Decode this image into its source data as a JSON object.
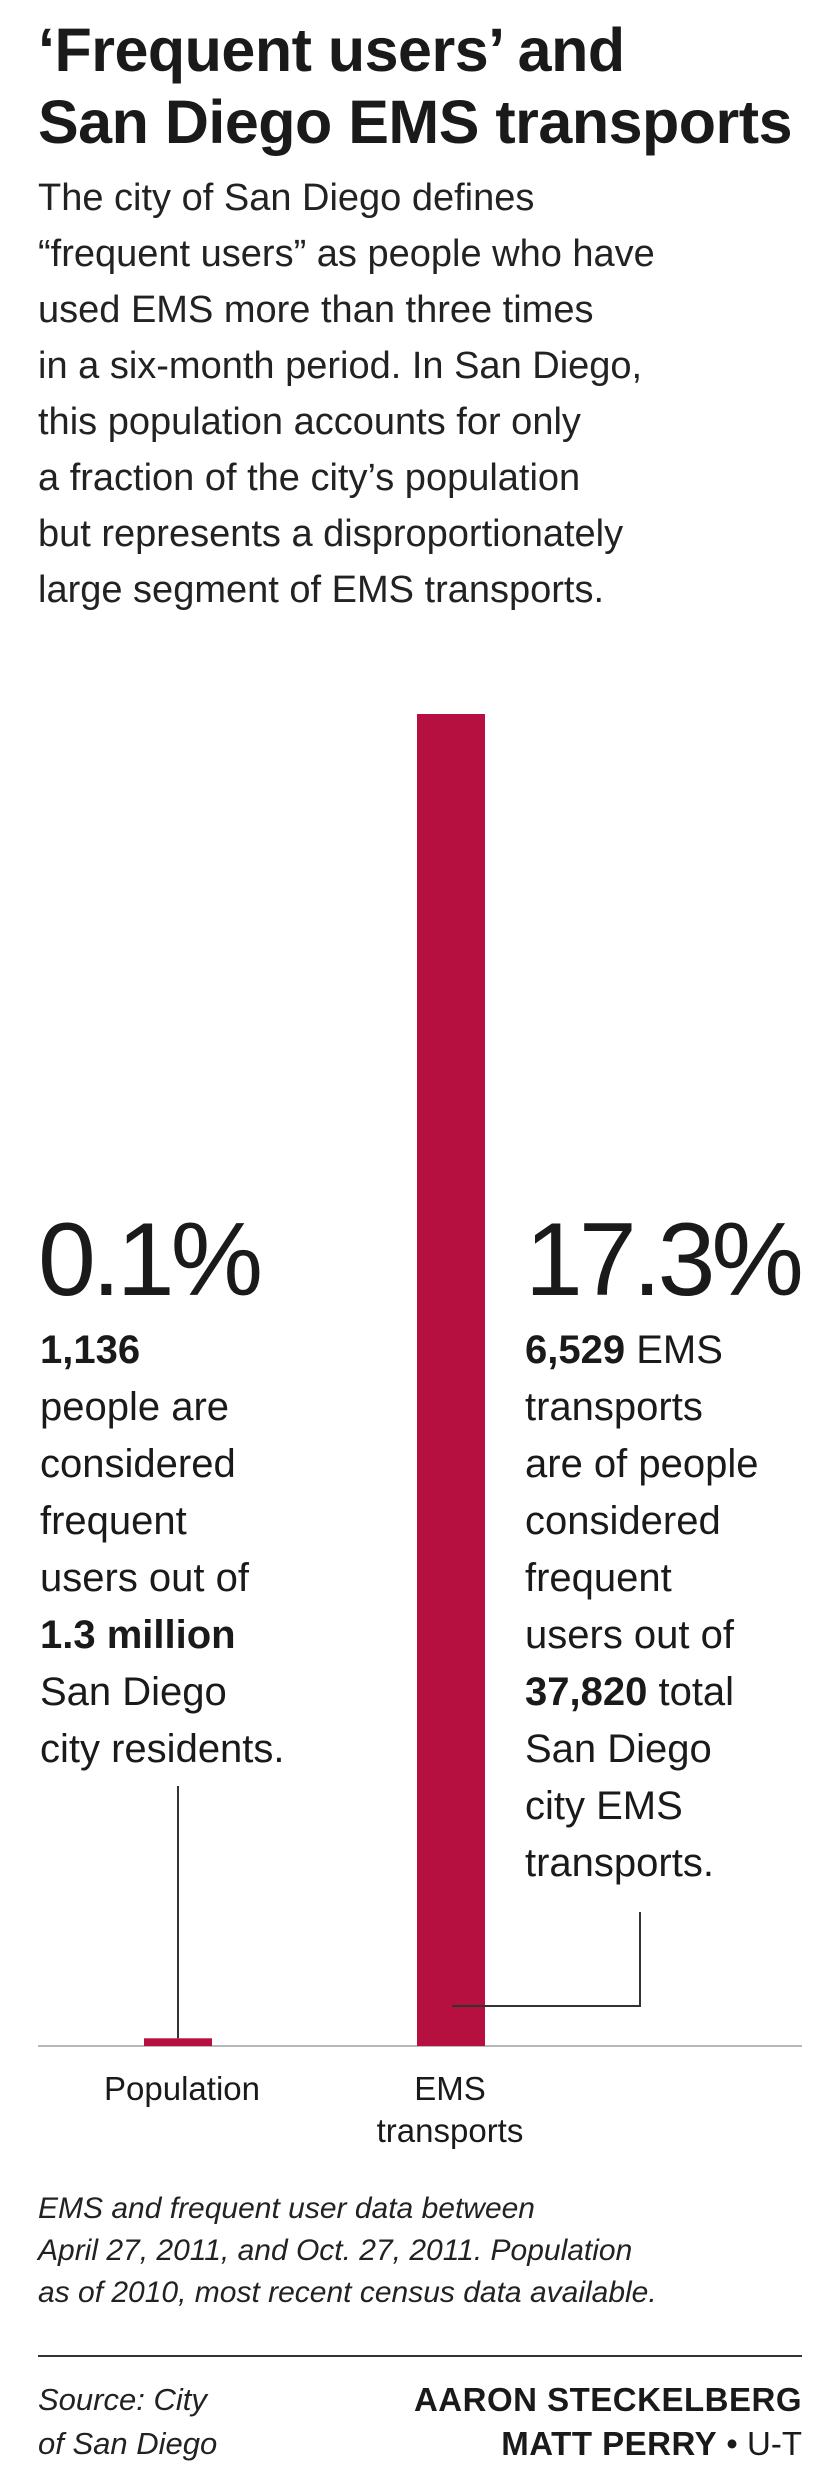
{
  "header": {
    "title_line1": "‘Frequent users’ and",
    "title_line2": "San Diego EMS transports",
    "intro_lines": [
      "The city of San Diego defines",
      "“frequent users” as people who have",
      "used EMS more than three times",
      "in a six-month period. In San Diego,",
      "this population accounts for only",
      "a fraction of the city’s population",
      "but represents a disproportionately",
      "large segment of EMS transports."
    ]
  },
  "chart_data": {
    "type": "bar",
    "categories": [
      "Population",
      "EMS transports"
    ],
    "category_label_lines": [
      [
        "Population"
      ],
      [
        "EMS",
        "transports"
      ]
    ],
    "values": [
      0.1,
      17.3
    ],
    "unit": "%",
    "ylim": [
      0,
      17.3
    ],
    "grid": false,
    "bar_color": "#b5103f",
    "annotations": [
      {
        "value_label": "0.1%",
        "lines": [
          [
            {
              "t": "1,136",
              "b": true
            }
          ],
          [
            {
              "t": "people are",
              "b": false
            }
          ],
          [
            {
              "t": "considered",
              "b": false
            }
          ],
          [
            {
              "t": "frequent",
              "b": false
            }
          ],
          [
            {
              "t": "users out of",
              "b": false
            }
          ],
          [
            {
              "t": "1.3 million",
              "b": true
            }
          ],
          [
            {
              "t": "San Diego",
              "b": false
            }
          ],
          [
            {
              "t": "city residents.",
              "b": false
            }
          ]
        ]
      },
      {
        "value_label": "17.3%",
        "lines": [
          [
            {
              "t": "6,529",
              "b": true
            },
            {
              "t": " EMS",
              "b": false
            }
          ],
          [
            {
              "t": "transports",
              "b": false
            }
          ],
          [
            {
              "t": "are of people",
              "b": false
            }
          ],
          [
            {
              "t": "considered",
              "b": false
            }
          ],
          [
            {
              "t": "frequent",
              "b": false
            }
          ],
          [
            {
              "t": "users out of",
              "b": false
            }
          ],
          [
            {
              "t": "37,820",
              "b": true
            },
            {
              "t": " total",
              "b": false
            }
          ],
          [
            {
              "t": "San Diego",
              "b": false
            }
          ],
          [
            {
              "t": "city EMS",
              "b": false
            }
          ],
          [
            {
              "t": "transports.",
              "b": false
            }
          ]
        ]
      }
    ]
  },
  "footer": {
    "note_lines": [
      "EMS and frequent user data between",
      "April 27, 2011, and Oct. 27, 2011. Population",
      "as of 2010, most recent census data available."
    ],
    "source_lines": [
      "Source: City",
      "of San Diego"
    ],
    "credit_line1": "AARON STECKELBERG",
    "credit_line2_name": "MATT PERRY",
    "credit_line2_sep": " • ",
    "credit_line2_org": "U-T"
  }
}
